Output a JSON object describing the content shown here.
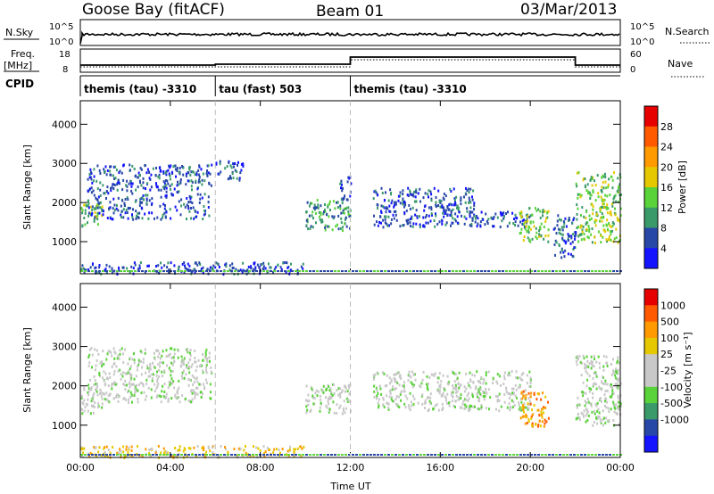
{
  "header": {
    "station": "Goose Bay (fitACF)",
    "beam": "Beam 01",
    "date": "03/Mar/2013"
  },
  "strip_labels": {
    "nsky": "N.Sky",
    "nsky_top": "10^5",
    "nsky_bottom": "10^0",
    "nsearch": "N.Search",
    "nsearch_top": "10^5",
    "nsearch_bottom": "10^0",
    "freq_line1": "Freq.",
    "freq_line2": "[MHz]",
    "freq_top": "18",
    "freq_bottom": "8",
    "nave": "Nave",
    "nave_top": "60",
    "nave_bottom": "0",
    "cpid": "CPID"
  },
  "cpid_segments": [
    {
      "label": "themis (tau) -3310",
      "start_hour": 0,
      "end_hour": 6
    },
    {
      "label": "tau (fast) 503",
      "start_hour": 6,
      "end_hour": 12
    },
    {
      "label": "themis (tau) -3310",
      "start_hour": 12,
      "end_hour": 24
    }
  ],
  "chart_data": [
    {
      "type": "heatmap",
      "panel": "power",
      "ylabel": "Slant Range [km]",
      "xlim_hours": [
        0,
        24
      ],
      "ylim": [
        180,
        4600
      ],
      "yticks": [
        "1000",
        "2000",
        "3000",
        "4000"
      ],
      "colorbar": {
        "label": "Power [dB]",
        "ticks": [
          "4",
          "8",
          "12",
          "16",
          "20",
          "24",
          "28"
        ],
        "colors": [
          "#1414ff",
          "#2848a8",
          "#3a9a6a",
          "#5ad23a",
          "#e6c800",
          "#ff9a00",
          "#ff5a00",
          "#e60000"
        ]
      },
      "scatter_regions": [
        {
          "t0": 0.0,
          "t1": 1.0,
          "r0": 1400,
          "r1": 2000,
          "level": 3
        },
        {
          "t0": 0.3,
          "t1": 5.8,
          "r0": 1600,
          "r1": 3000,
          "level": 1
        },
        {
          "t0": 6.0,
          "t1": 7.2,
          "r0": 2600,
          "r1": 3100,
          "level": 1
        },
        {
          "t0": 10.0,
          "t1": 12.0,
          "r0": 1300,
          "r1": 2100,
          "level": 2
        },
        {
          "t0": 11.5,
          "t1": 12.0,
          "r0": 2000,
          "r1": 2700,
          "level": 1
        },
        {
          "t0": 13.0,
          "t1": 17.5,
          "r0": 1400,
          "r1": 2400,
          "level": 1
        },
        {
          "t0": 17.5,
          "t1": 20.0,
          "r0": 1400,
          "r1": 1800,
          "level": 1
        },
        {
          "t0": 19.5,
          "t1": 20.8,
          "r0": 1000,
          "r1": 1900,
          "level": 3
        },
        {
          "t0": 21.0,
          "t1": 22.0,
          "r0": 600,
          "r1": 1700,
          "level": 1
        },
        {
          "t0": 22.0,
          "t1": 24.0,
          "r0": 1000,
          "r1": 2800,
          "level": 3
        },
        {
          "t0": 0.0,
          "t1": 10.0,
          "r0": 200,
          "r1": 500,
          "level": 1
        }
      ]
    },
    {
      "type": "heatmap",
      "panel": "velocity",
      "ylabel": "Slant Range [km]",
      "xlabel": "Time UT",
      "xlim_hours": [
        0,
        24
      ],
      "ylim": [
        180,
        4600
      ],
      "xticks": [
        "00:00",
        "04:00",
        "08:00",
        "12:00",
        "16:00",
        "20:00",
        "00:00"
      ],
      "yticks": [
        "1000",
        "2000",
        "3000",
        "4000"
      ],
      "colorbar": {
        "label": "Velocity [m s⁻¹]",
        "ticks": [
          "1000",
          "500",
          "100",
          "25",
          "-25",
          "-100",
          "-500",
          "-1000"
        ],
        "colors": [
          "#1414ff",
          "#2848a8",
          "#3a9a6a",
          "#5ad23a",
          "#c8c8c8",
          "#c8c8c8",
          "#e6c800",
          "#ff9a00",
          "#ff5a00",
          "#e60000"
        ]
      },
      "scatter_regions": [
        {
          "t0": 0.0,
          "t1": 1.0,
          "r0": 1300,
          "r1": 2000,
          "level": 4
        },
        {
          "t0": 0.3,
          "t1": 5.8,
          "r0": 1600,
          "r1": 3000,
          "level": 4
        },
        {
          "t0": 10.0,
          "t1": 12.0,
          "r0": 1300,
          "r1": 2100,
          "level": 4
        },
        {
          "t0": 13.0,
          "t1": 20.0,
          "r0": 1400,
          "r1": 2400,
          "level": 4
        },
        {
          "t0": 19.5,
          "t1": 20.8,
          "r0": 1000,
          "r1": 1900,
          "level": 7
        },
        {
          "t0": 22.0,
          "t1": 24.0,
          "r0": 1000,
          "r1": 2800,
          "level": 4
        },
        {
          "t0": 0.0,
          "t1": 10.0,
          "r0": 200,
          "r1": 500,
          "level": 6
        }
      ]
    }
  ]
}
